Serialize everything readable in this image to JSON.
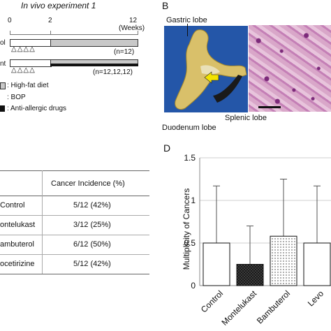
{
  "panel_a": {
    "title": "In vivo experiment 1",
    "week_0": "0",
    "week_2": "2",
    "week_12": "12",
    "weeks_unit": "(Weeks)",
    "row1_label": "ol",
    "row1_n": "(n=12)",
    "row2_label": "nt",
    "row2_n": "(n=12,12,12)",
    "triangles": "△△△△",
    "legend": [
      {
        "label": ": High-fat diet",
        "color": "#c8c8c8"
      },
      {
        "label": ": BOP",
        "color": "#ffffff"
      },
      {
        "label": ": Anti-allergic drugs",
        "color": "#111111"
      }
    ]
  },
  "panel_b": {
    "letter": "B",
    "label_gastric": "Gastric lobe",
    "label_splenic": "Splenic lobe",
    "label_duodenum": "Duodenum lobe"
  },
  "panel_c": {
    "header": "Cancer Incidence (%)",
    "rows": [
      {
        "group": "Control",
        "value": "5/12 (42%)"
      },
      {
        "group": "ontelukast",
        "value": "3/12 (25%)"
      },
      {
        "group": "ambuterol",
        "value": "6/12 (50%)"
      },
      {
        "group": "ocetirizine",
        "value": "5/12 (42%)"
      }
    ]
  },
  "panel_d": {
    "letter": "D",
    "ylabel": "Multiplicity of Cancers",
    "yticks": [
      "0",
      "0.5",
      "1",
      "1.5"
    ]
  },
  "chart_data": {
    "type": "bar",
    "categories": [
      "Control",
      "Montelukast",
      "Bambuterol",
      "Levo"
    ],
    "values": [
      0.5,
      0.25,
      0.58,
      0.5
    ],
    "error_upper": [
      1.17,
      0.7,
      1.25,
      1.17
    ],
    "ylabel": "Multiplicity of Cancers",
    "ylim": [
      0,
      1.5
    ],
    "grid": true,
    "bar_fills": [
      "white",
      "dark-crosshatch",
      "dotted",
      "white"
    ]
  }
}
